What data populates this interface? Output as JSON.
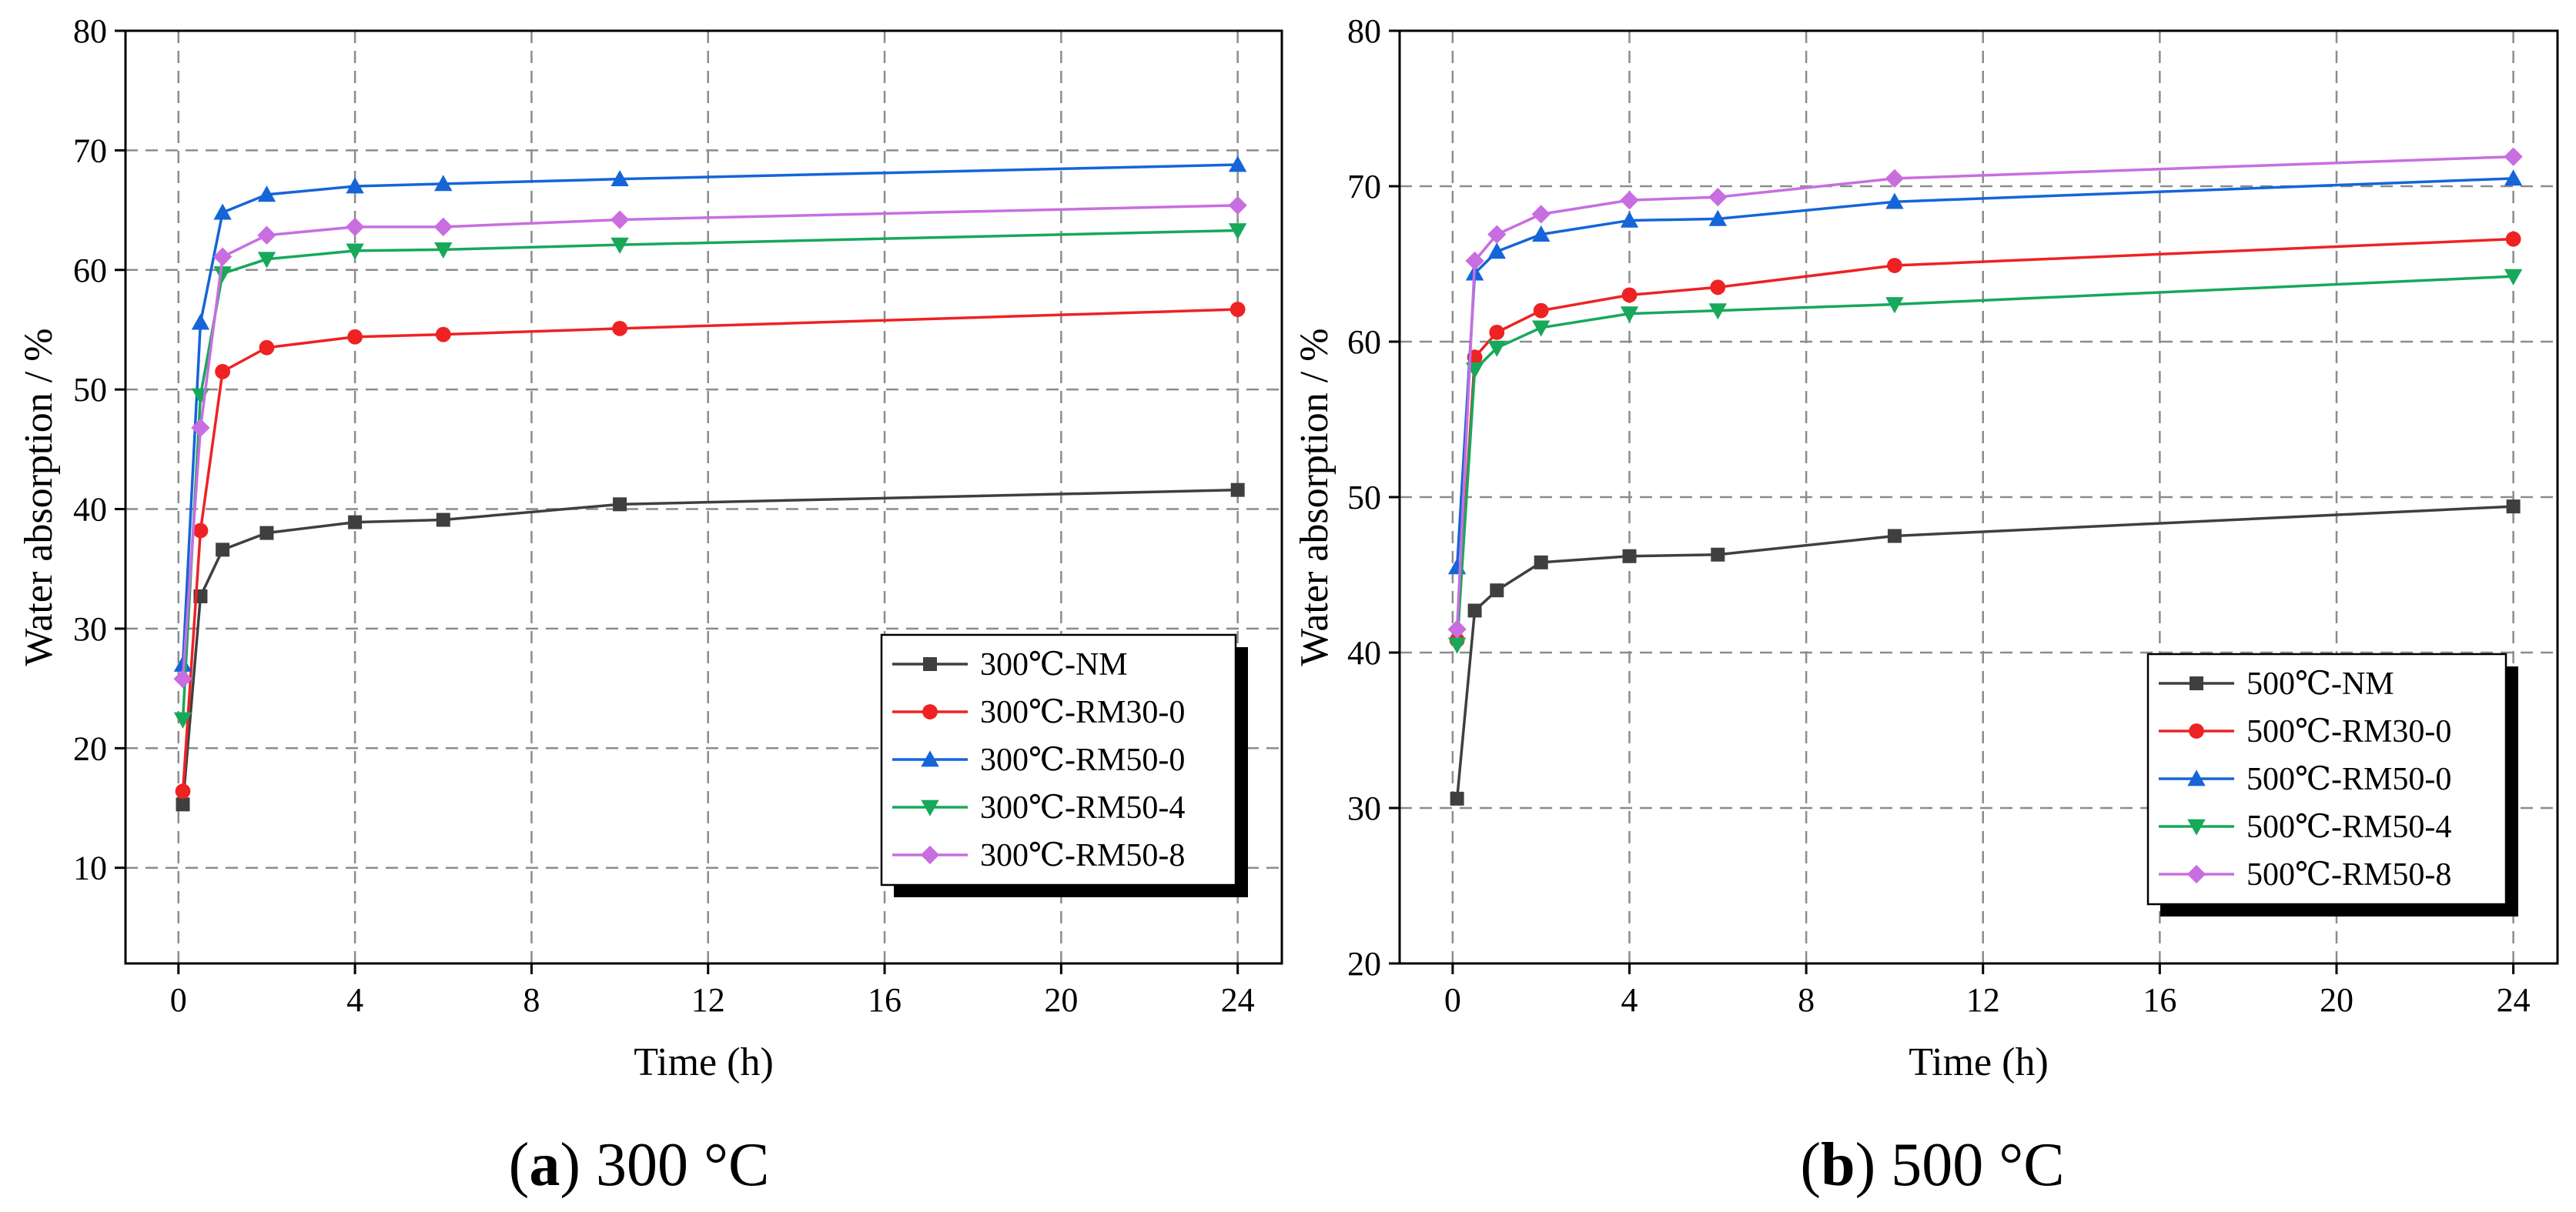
{
  "colors": {
    "NM": "#3f3f3f",
    "RM30-0": "#ee2222",
    "RM50-0": "#1565d8",
    "RM50-4": "#17a85a",
    "RM50-8": "#c86ee0",
    "grid": "#8c8c8c",
    "axis": "#000000"
  },
  "chart_data": [
    {
      "type": "line",
      "caption_letter": "a",
      "caption_text": " 300 °C",
      "xlabel": "Time (h)",
      "ylabel": "Water absorption / %",
      "xlim": [
        -1.2,
        25
      ],
      "ylim": [
        2,
        80
      ],
      "xticks": [
        0,
        4,
        8,
        12,
        16,
        20,
        24
      ],
      "yticks": [
        10,
        20,
        30,
        40,
        50,
        60,
        70,
        80
      ],
      "x": [
        0.1,
        0.5,
        1,
        2,
        4,
        6,
        10,
        24
      ],
      "legend_position": "bottom-right",
      "series": [
        {
          "name": "300℃-NM",
          "key": "NM",
          "marker": "square",
          "values": [
            15.3,
            32.7,
            36.6,
            38.0,
            38.9,
            39.1,
            40.4,
            41.6
          ]
        },
        {
          "name": "300℃-RM30-0",
          "key": "RM30-0",
          "marker": "circle",
          "values": [
            16.4,
            38.2,
            51.5,
            53.5,
            54.4,
            54.6,
            55.1,
            56.7
          ]
        },
        {
          "name": "300℃-RM50-0",
          "key": "RM50-0",
          "marker": "triangle-up",
          "values": [
            27.0,
            55.6,
            64.8,
            66.3,
            67.0,
            67.2,
            67.6,
            68.8
          ]
        },
        {
          "name": "300℃-RM50-4",
          "key": "RM50-4",
          "marker": "triangle-down",
          "values": [
            22.4,
            49.5,
            59.7,
            60.9,
            61.6,
            61.7,
            62.1,
            63.3
          ]
        },
        {
          "name": "300℃-RM50-8",
          "key": "RM50-8",
          "marker": "diamond",
          "values": [
            25.8,
            46.8,
            61.1,
            62.9,
            63.6,
            63.6,
            64.2,
            65.4
          ]
        }
      ]
    },
    {
      "type": "line",
      "caption_letter": "b",
      "caption_text": " 500 °C",
      "xlabel": "Time (h)",
      "ylabel": "Water absorption / %",
      "xlim": [
        -1.2,
        25
      ],
      "ylim": [
        20,
        80
      ],
      "xticks": [
        0,
        4,
        8,
        12,
        16,
        20,
        24
      ],
      "yticks": [
        20,
        30,
        40,
        50,
        60,
        70,
        80
      ],
      "x": [
        0.1,
        0.5,
        1,
        2,
        4,
        6,
        10,
        24
      ],
      "legend_position": "bottom-right",
      "series": [
        {
          "name": "500℃-NM",
          "key": "NM",
          "marker": "square",
          "values": [
            30.6,
            42.7,
            44.0,
            45.8,
            46.2,
            46.3,
            47.5,
            49.4
          ]
        },
        {
          "name": "500℃-RM30-0",
          "key": "RM30-0",
          "marker": "circle",
          "values": [
            40.8,
            59.0,
            60.6,
            62.0,
            63.0,
            63.5,
            64.9,
            66.6
          ]
        },
        {
          "name": "500℃-RM50-0",
          "key": "RM50-0",
          "marker": "triangle-up",
          "values": [
            45.5,
            64.4,
            65.8,
            66.9,
            67.8,
            67.9,
            69.0,
            70.5
          ]
        },
        {
          "name": "500℃-RM50-4",
          "key": "RM50-4",
          "marker": "triangle-down",
          "values": [
            40.5,
            58.2,
            59.6,
            60.9,
            61.8,
            62.0,
            62.4,
            64.2
          ]
        },
        {
          "name": "500℃-RM50-8",
          "key": "RM50-8",
          "marker": "diamond",
          "values": [
            41.5,
            65.2,
            66.9,
            68.2,
            69.1,
            69.3,
            70.5,
            71.9
          ]
        }
      ]
    }
  ]
}
